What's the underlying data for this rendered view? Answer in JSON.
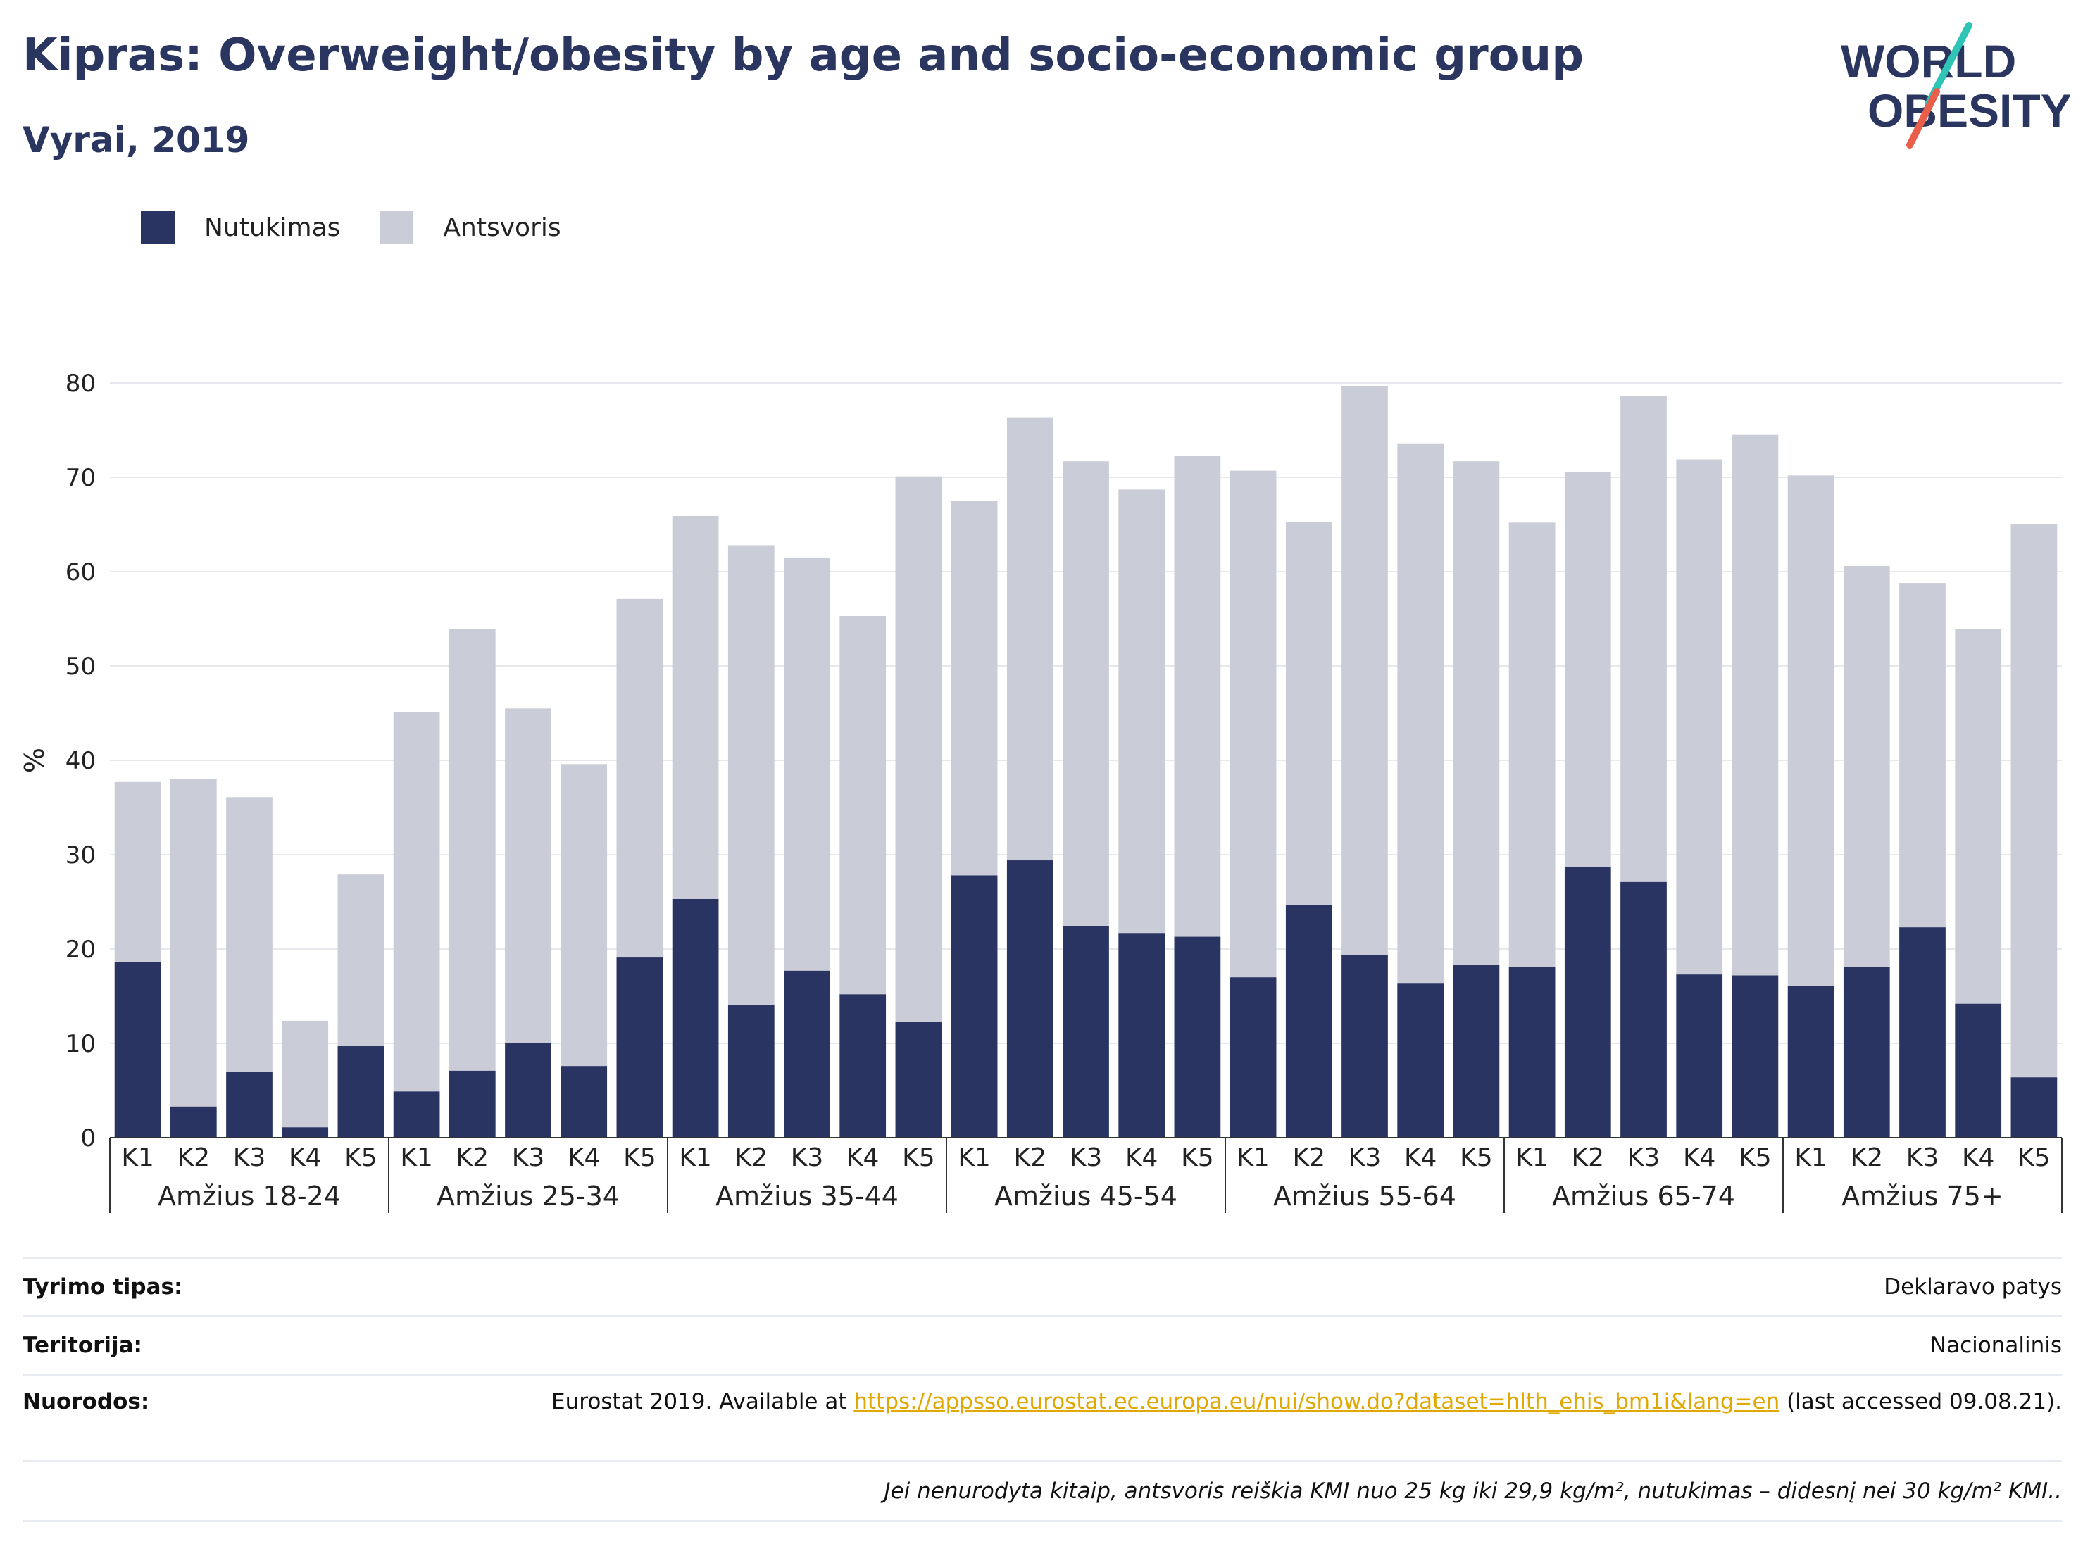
{
  "title": "Kipras: Overweight/obesity by age and socio-economic group",
  "subtitle": "Vyrai, 2019",
  "logo": {
    "line1": "WORLD",
    "line2": "OBESITY",
    "accent_colors": [
      "#2ec4b6",
      "#e8604c"
    ]
  },
  "legend": [
    {
      "label": "Nutukimas",
      "color": "#293462"
    },
    {
      "label": "Antsvoris",
      "color": "#caccd8"
    }
  ],
  "chart_data": {
    "type": "bar",
    "stacked": true,
    "ylabel": "%",
    "ylim": [
      0,
      80
    ],
    "yticks": [
      0,
      10,
      20,
      30,
      40,
      50,
      60,
      70,
      80
    ],
    "grid": true,
    "legend_position": "top-left",
    "groups": [
      {
        "label": "Amžius 18-24",
        "categories": [
          "K1",
          "K2",
          "K3",
          "K4",
          "K5"
        ],
        "obesity": [
          18.6,
          3.3,
          7.0,
          1.1,
          9.7
        ],
        "total": [
          37.7,
          38.0,
          36.1,
          12.4,
          27.9
        ]
      },
      {
        "label": "Amžius 25-34",
        "categories": [
          "K1",
          "K2",
          "K3",
          "K4",
          "K5"
        ],
        "obesity": [
          4.9,
          7.1,
          10.0,
          7.6,
          19.1
        ],
        "total": [
          45.1,
          53.9,
          45.5,
          39.6,
          57.1
        ]
      },
      {
        "label": "Amžius 35-44",
        "categories": [
          "K1",
          "K2",
          "K3",
          "K4",
          "K5"
        ],
        "obesity": [
          25.3,
          14.1,
          17.7,
          15.2,
          12.3
        ],
        "total": [
          65.9,
          62.8,
          61.5,
          55.3,
          70.1
        ]
      },
      {
        "label": "Amžius 45-54",
        "categories": [
          "K1",
          "K2",
          "K3",
          "K4",
          "K5"
        ],
        "obesity": [
          27.8,
          29.4,
          22.4,
          21.7,
          21.3
        ],
        "total": [
          67.5,
          76.3,
          71.7,
          68.7,
          72.3
        ]
      },
      {
        "label": "Amžius 55-64",
        "categories": [
          "K1",
          "K2",
          "K3",
          "K4",
          "K5"
        ],
        "obesity": [
          17.0,
          24.7,
          19.4,
          16.4,
          18.3
        ],
        "total": [
          70.7,
          65.3,
          79.7,
          73.6,
          71.7
        ]
      },
      {
        "label": "Amžius 65-74",
        "categories": [
          "K1",
          "K2",
          "K3",
          "K4",
          "K5"
        ],
        "obesity": [
          18.1,
          28.7,
          27.1,
          17.3,
          17.2
        ],
        "total": [
          65.2,
          70.6,
          78.6,
          71.9,
          74.5
        ]
      },
      {
        "label": "Amžius 75+",
        "categories": [
          "K1",
          "K2",
          "K3",
          "K4",
          "K5"
        ],
        "obesity": [
          16.1,
          18.1,
          22.3,
          14.2,
          6.4
        ],
        "total": [
          70.2,
          60.6,
          58.8,
          53.9,
          65.0
        ]
      }
    ]
  },
  "info": {
    "survey_type_label": "Tyrimo tipas:",
    "survey_type_value": "Deklaravo patys",
    "territory_label": "Teritorija:",
    "territory_value": "Nacionalinis",
    "references_label": "Nuorodos:",
    "references_prefix": "Eurostat 2019. Available at ",
    "references_link": "https://appsso.eurostat.ec.europa.eu/nui/show.do?dataset=hlth_ehis_bm1i&lang=en",
    "references_suffix": " (last accessed 09.08.21).",
    "note": "Jei nenurodyta kitaip, antsvoris reiškia KMI nuo 25 kg iki 29,9 kg/m², nutukimas – didesnį nei 30 kg/m² KMI.."
  }
}
